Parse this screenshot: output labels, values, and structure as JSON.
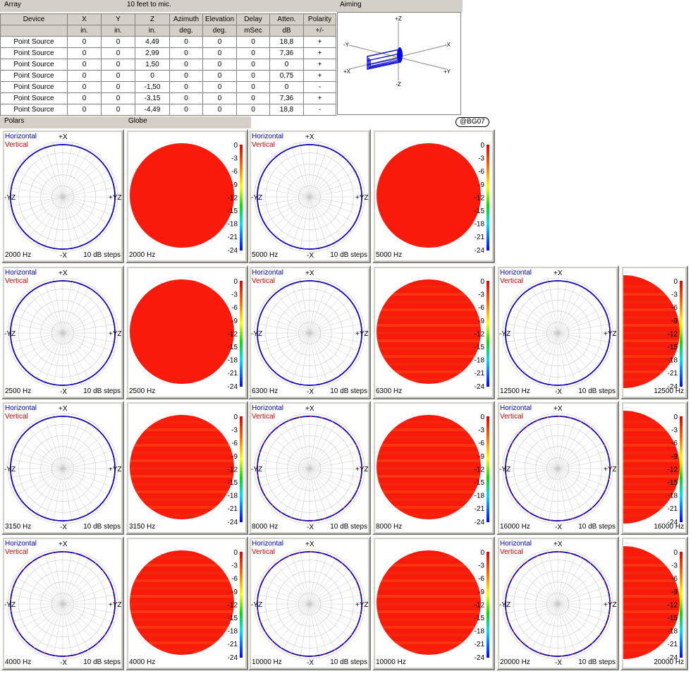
{
  "array_header": {
    "title": "Array",
    "subtitle": "10 feet to mic."
  },
  "aiming_header": {
    "title": "Aiming"
  },
  "aiming_axes": {
    "pz": "+Z",
    "nz": "-Z",
    "px": "+X",
    "nx": "-X",
    "py": "+Y",
    "ny": "-Y",
    "nx2": "-X",
    "py2": "+Y"
  },
  "polars_header": "Polars",
  "globe_header": "Globe",
  "badge": "@BG07",
  "table": {
    "columns": [
      "Device",
      "X",
      "Y",
      "Z",
      "Azimuth",
      "Elevation",
      "Delay",
      "Atten.",
      "Polarity"
    ],
    "units": [
      "",
      "in.",
      "in.",
      "in.",
      "deg.",
      "deg.",
      "mSec",
      "dB",
      "+/-"
    ],
    "rows": [
      [
        "Point Source",
        "0",
        "0",
        "4,49",
        "0",
        "0",
        "0",
        "18,8",
        "+"
      ],
      [
        "Point Source",
        "0",
        "0",
        "2,99",
        "0",
        "0",
        "0",
        "7,36",
        "+"
      ],
      [
        "Point Source",
        "0",
        "0",
        "1,50",
        "0",
        "0",
        "0",
        "0",
        "+"
      ],
      [
        "Point Source",
        "0",
        "0",
        "0",
        "0",
        "0",
        "0",
        "0,75",
        "+"
      ],
      [
        "Point Source",
        "0",
        "0",
        "-1,50",
        "0",
        "0",
        "0",
        "0",
        "-"
      ],
      [
        "Point Source",
        "0",
        "0",
        "-3,15",
        "0",
        "0",
        "0",
        "7,36",
        "+"
      ],
      [
        "Point Source",
        "0",
        "0",
        "-4,49",
        "0",
        "0",
        "0",
        "18,8",
        "-"
      ]
    ]
  },
  "polar_labels": {
    "horizontal": "Horizontal",
    "vertical": "Vertical",
    "top": "+X",
    "bottom": "-X",
    "left": "-YZ",
    "right": "+YZ",
    "steps": "10 dB steps"
  },
  "colors": {
    "horizontal": "#0000cc",
    "vertical": "#dd0000",
    "globe": "#f81a0a"
  },
  "scale_ticks": [
    "0",
    "-3",
    "-6",
    "-9",
    "-12",
    "-15",
    "-18",
    "-21",
    "-24"
  ],
  "plots": [
    {
      "freq": "2000 Hz"
    },
    {
      "freq": "5000 Hz"
    },
    {
      "freq": "2500 Hz"
    },
    {
      "freq": "6300 Hz"
    },
    {
      "freq": "12500 Hz"
    },
    {
      "freq": "3150 Hz"
    },
    {
      "freq": "8000 Hz"
    },
    {
      "freq": "16000 Hz"
    },
    {
      "freq": "4000 Hz"
    },
    {
      "freq": "10000 Hz"
    },
    {
      "freq": "20000 Hz"
    }
  ]
}
